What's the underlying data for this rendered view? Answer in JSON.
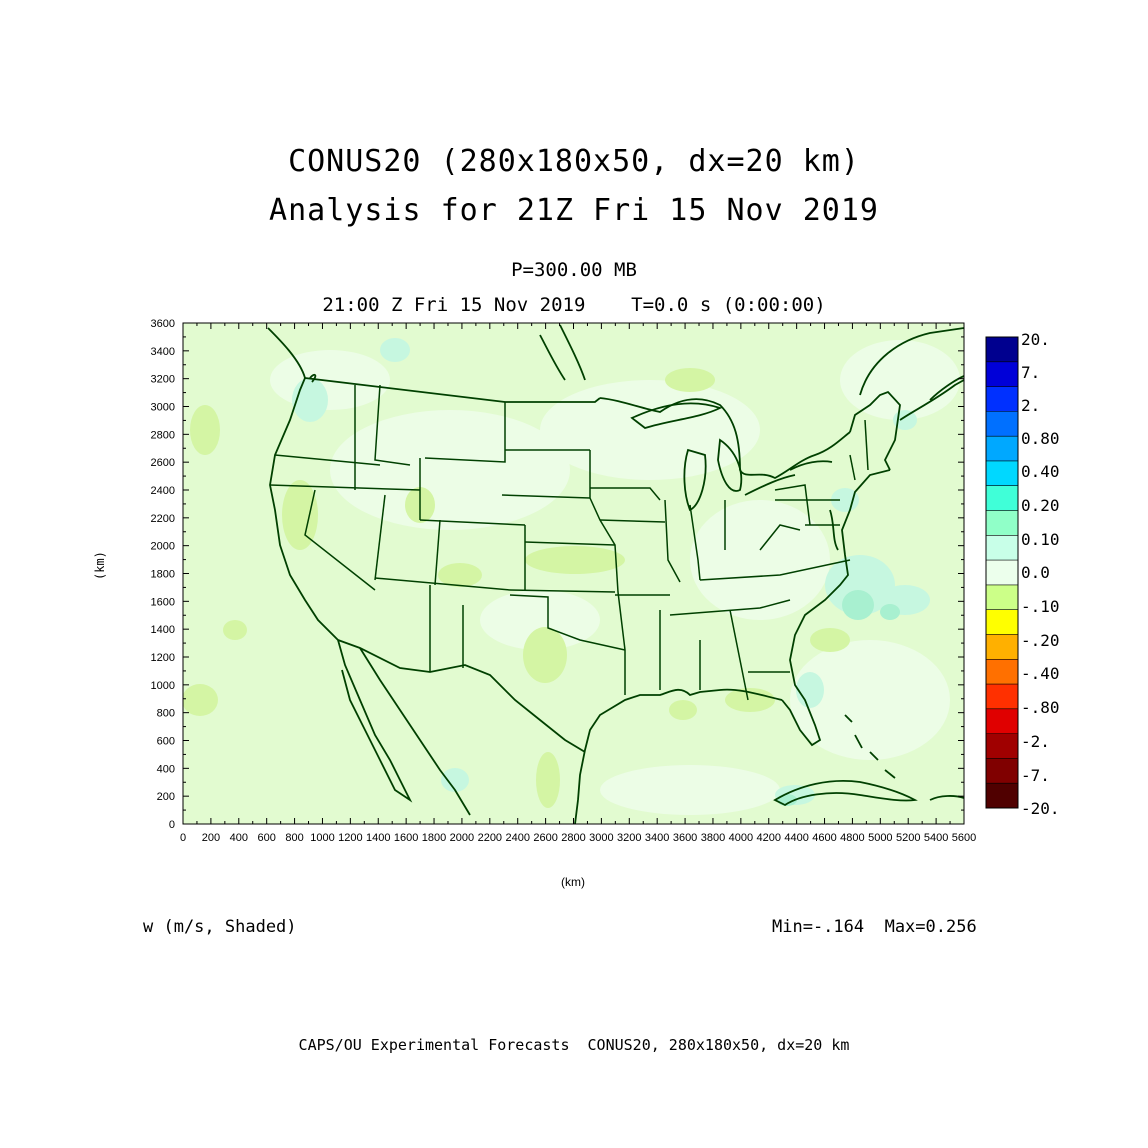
{
  "title": {
    "line1": "CONUS20 (280x180x50, dx=20 km)",
    "line2": "Analysis for 21Z Fri 15 Nov 2019"
  },
  "subtitle": {
    "level": "P=300.00 MB",
    "time": "21:00 Z Fri 15 Nov 2019    T=0.0 s (0:00:00)"
  },
  "axes": {
    "ylabel": "(km)",
    "xlabel": "(km)",
    "yticks": [
      "0",
      "200",
      "400",
      "600",
      "800",
      "1000",
      "1200",
      "1400",
      "1600",
      "1800",
      "2000",
      "2200",
      "2400",
      "2600",
      "2800",
      "3000",
      "3200",
      "3400",
      "3600"
    ],
    "xticks": [
      "0",
      "200",
      "400",
      "600",
      "800",
      "1000",
      "1200",
      "1400",
      "1600",
      "1800",
      "2000",
      "2200",
      "2400",
      "2600",
      "2800",
      "3000",
      "3200",
      "3400",
      "3600",
      "3800",
      "4000",
      "4200",
      "4400",
      "4600",
      "4800",
      "5000",
      "5200",
      "5400",
      "5600"
    ],
    "xlim": [
      0,
      5600
    ],
    "ylim": [
      0,
      3600
    ]
  },
  "field": {
    "label": "w (m/s, Shaded)",
    "stats": "Min=-.164  Max=0.256"
  },
  "colorbar": {
    "labels": [
      "20.",
      "7.",
      "2.",
      "0.80",
      "0.40",
      "0.20",
      "0.10",
      "0.0",
      "-.10",
      "-.20",
      "-.40",
      "-.80",
      "-2.",
      "-7.",
      "-20."
    ],
    "colors": [
      "#00008f",
      "#0000d8",
      "#0030ff",
      "#0070ff",
      "#00a8ff",
      "#00d8ff",
      "#40ffd8",
      "#90ffc8",
      "#c8ffe8",
      "#ecffec",
      "#ccff88",
      "#ffff00",
      "#ffb000",
      "#ff7000",
      "#ff3000",
      "#e00000",
      "#a00000",
      "#800000",
      "#500000"
    ]
  },
  "footer": "CAPS/OU Experimental Forecasts  CONUS20, 280x180x50, dx=20 km",
  "map_colors": {
    "background": "#e2fbd0",
    "patch_light": "#ecfde6",
    "patch_green": "#d4f5a4",
    "patch_cyan": "#c6f7e0",
    "patch_teal": "#a8f0d0",
    "borders": "#004000"
  }
}
